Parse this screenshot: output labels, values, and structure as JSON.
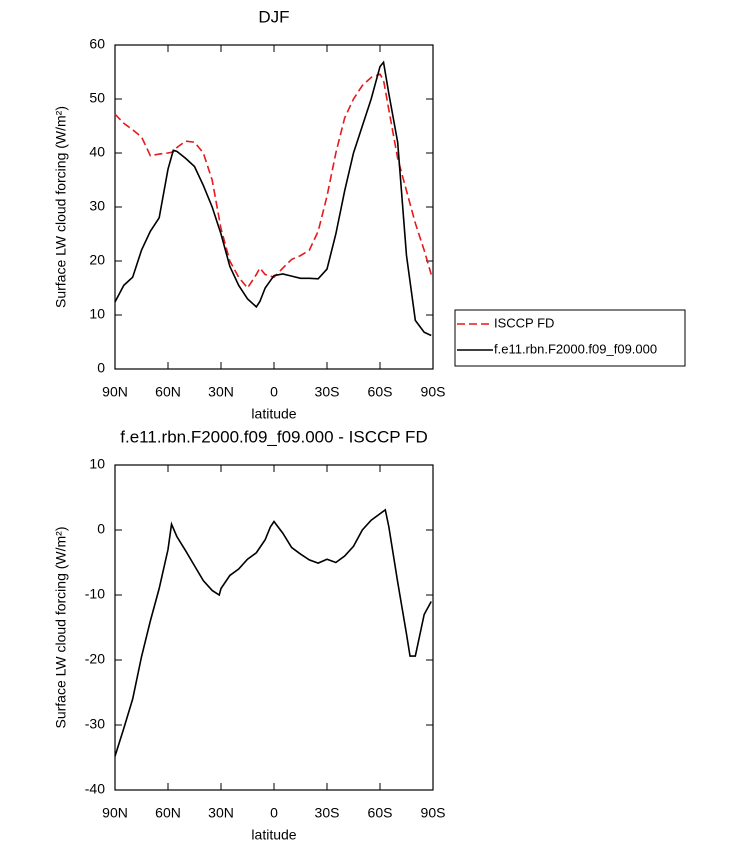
{
  "chart_data": [
    {
      "type": "line",
      "title": "DJF",
      "xlabel": "latitude",
      "ylabel": "Surface LW cloud forcing (W/m²)",
      "x": [
        90,
        85,
        80,
        75,
        70,
        65,
        60,
        57,
        55,
        50,
        45,
        40,
        35,
        30,
        25,
        20,
        15,
        10,
        8,
        5,
        0,
        -5,
        -10,
        -15,
        -20,
        -25,
        -30,
        -35,
        -40,
        -45,
        -50,
        -55,
        -60,
        -62,
        -65,
        -70,
        -75,
        -80,
        -85,
        -89
      ],
      "series": [
        {
          "name": "ISCCP FD",
          "color": "#e41a1c",
          "dash": "dashed",
          "values": [
            47.2,
            45.5,
            44.3,
            43,
            39.5,
            39.8,
            40,
            40.2,
            41,
            42.2,
            42,
            40,
            35,
            26,
            20,
            17,
            15,
            17.5,
            18.7,
            17.5,
            17,
            18.7,
            20.3,
            21,
            22,
            25.5,
            32,
            40,
            46.5,
            50,
            52.5,
            54,
            54.6,
            53.5,
            48,
            39,
            33,
            27,
            22,
            17.5
          ]
        },
        {
          "name": "f.e11.rbn.F2000.f09_f09.000",
          "color": "#000000",
          "dash": "solid",
          "values": [
            12.4,
            15.5,
            17,
            22,
            25.5,
            28,
            37,
            40.5,
            40.3,
            39,
            37.5,
            34,
            30,
            25,
            19,
            15.5,
            13,
            11.5,
            12.5,
            15,
            17.3,
            17.6,
            17.2,
            16.8,
            16.8,
            16.7,
            18.5,
            25,
            33,
            40,
            45,
            50,
            56,
            56.8,
            51,
            42,
            21,
            9,
            6.8,
            6.2
          ]
        }
      ],
      "xlim": [
        90,
        -90
      ],
      "xticks": [
        {
          "value": 90,
          "label": "90N"
        },
        {
          "value": 60,
          "label": "60N"
        },
        {
          "value": 30,
          "label": "30N"
        },
        0,
        {
          "value": -30,
          "label": "30S"
        },
        {
          "value": -60,
          "label": "60S"
        },
        {
          "value": -90,
          "label": "90S"
        }
      ],
      "ylim": [
        0,
        60
      ],
      "yticks": [
        0,
        10,
        20,
        30,
        40,
        50,
        60
      ],
      "legend": "right"
    },
    {
      "type": "line",
      "title": "f.e11.rbn.F2000.f09_f09.000 - ISCCP FD",
      "xlabel": "latitude",
      "ylabel": "Surface LW cloud forcing (W/m²)",
      "x": [
        90,
        85,
        80,
        75,
        70,
        65,
        60,
        58,
        55,
        50,
        45,
        40,
        35,
        31,
        30,
        25,
        20,
        15,
        10,
        5,
        2,
        0,
        -5,
        -10,
        -15,
        -20,
        -25,
        -30,
        -35,
        -40,
        -45,
        -50,
        -55,
        -60,
        -63,
        -65,
        -70,
        -75,
        -77,
        -80,
        -85,
        -89
      ],
      "series": [
        {
          "color": "#000000",
          "dash": "solid",
          "values": [
            -34.8,
            -30.5,
            -26,
            -19.5,
            -14,
            -9,
            -3,
            0.9,
            -1,
            -3.2,
            -5.5,
            -7.8,
            -9.3,
            -10,
            -9,
            -7,
            -6,
            -4.5,
            -3.5,
            -1.5,
            0.5,
            1.3,
            -0.5,
            -2.7,
            -3.7,
            -4.6,
            -5.1,
            -4.5,
            -5,
            -4,
            -2.5,
            0,
            1.5,
            2.5,
            3.1,
            0.5,
            -8,
            -16,
            -19.4,
            -19.4,
            -13,
            -11
          ]
        }
      ],
      "xlim": [
        90,
        -90
      ],
      "xticks": [
        {
          "value": 90,
          "label": "90N"
        },
        {
          "value": 60,
          "label": "60N"
        },
        {
          "value": 30,
          "label": "30N"
        },
        0,
        {
          "value": -30,
          "label": "30S"
        },
        {
          "value": -60,
          "label": "60S"
        },
        {
          "value": -90,
          "label": "90S"
        }
      ],
      "ylim": [
        -40,
        10
      ],
      "yticks": [
        -40,
        -30,
        -20,
        -10,
        0,
        10
      ]
    }
  ]
}
